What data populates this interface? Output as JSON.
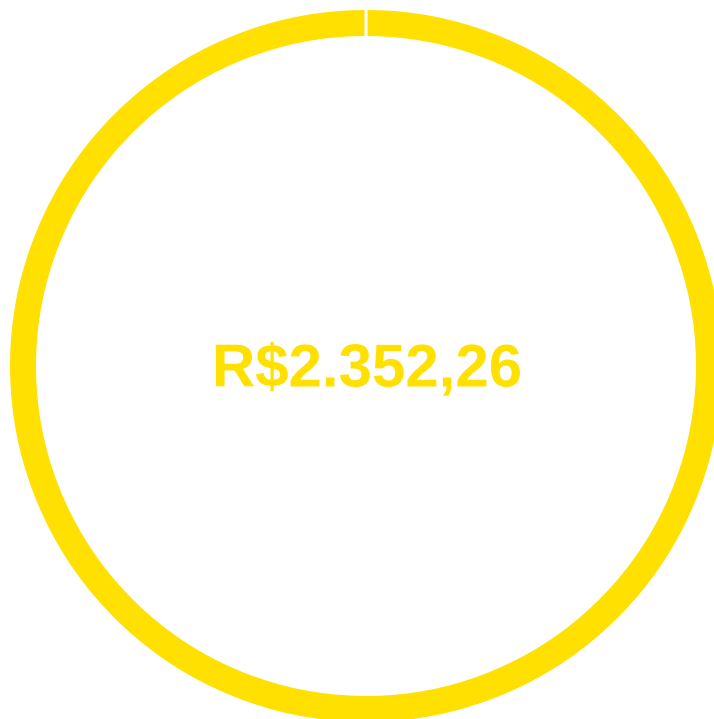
{
  "amount_label": "R$2.352,26"
}
